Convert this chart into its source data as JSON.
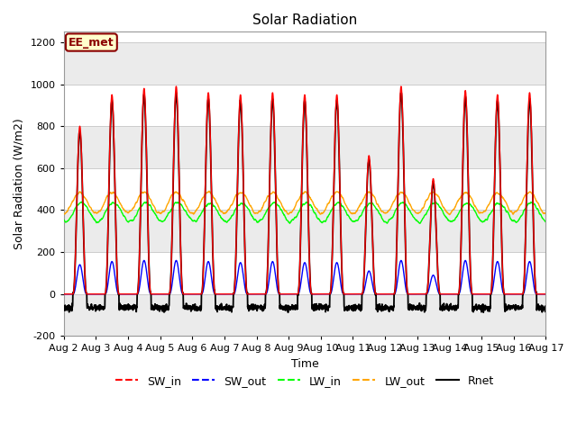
{
  "title": "Solar Radiation",
  "xlabel": "Time",
  "ylabel": "Solar Radiation (W/m2)",
  "ylim": [
    -200,
    1250
  ],
  "yticks": [
    -200,
    0,
    200,
    400,
    600,
    800,
    1000,
    1200
  ],
  "n_days": 15,
  "date_labels": [
    "Aug 2",
    "Aug 3",
    "Aug 4",
    "Aug 5",
    "Aug 6",
    "Aug 7",
    "Aug 8",
    "Aug 9",
    "Aug 10",
    "Aug 11",
    "Aug 12",
    "Aug 13",
    "Aug 14",
    "Aug 15",
    "Aug 16",
    "Aug 17"
  ],
  "legend_entries": [
    "SW_in",
    "SW_out",
    "LW_in",
    "LW_out",
    "Rnet"
  ],
  "legend_colors": [
    "red",
    "blue",
    "lime",
    "orange",
    "black"
  ],
  "annotation_text": "EE_met",
  "annotation_bg": "#ffffcc",
  "annotation_border": "#8B0000",
  "points_per_day": 144,
  "SW_in_peak": [
    800,
    950,
    980,
    990,
    960,
    950,
    960,
    950,
    950,
    660,
    990,
    550,
    970,
    950,
    960
  ],
  "SW_out_peak": [
    140,
    155,
    160,
    160,
    155,
    150,
    155,
    150,
    150,
    110,
    160,
    90,
    160,
    155,
    155
  ],
  "LW_in_base": 390,
  "LW_in_amp": 45,
  "LW_out_base": 435,
  "LW_out_amp": 50,
  "Rnet_night": -65,
  "Rnet_scale": 0.97
}
